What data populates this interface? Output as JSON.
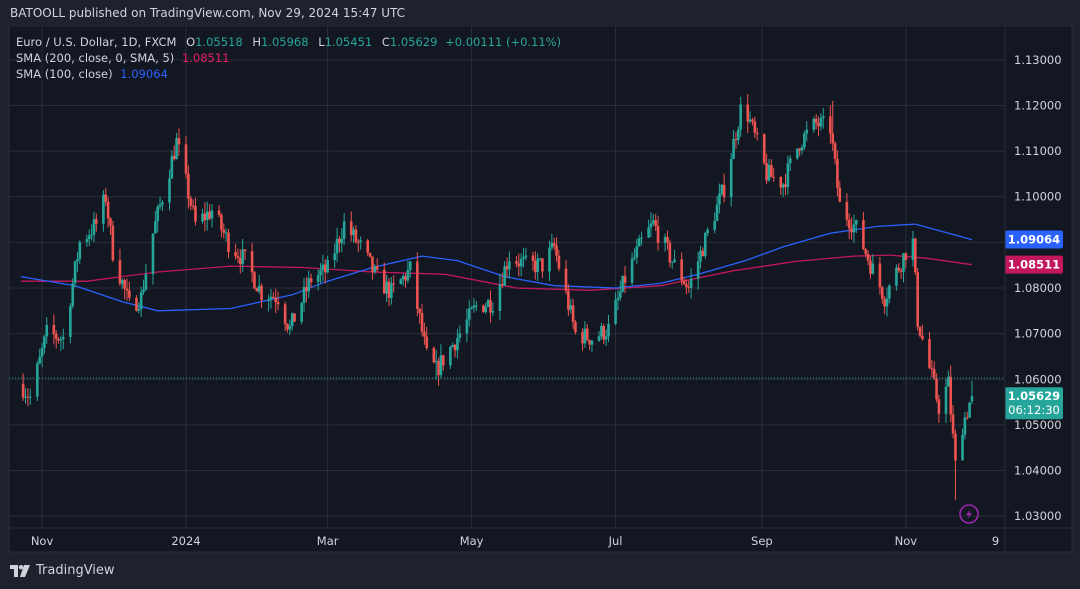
{
  "header": {
    "text": "BATOOLL published on TradingView.com, Nov 29, 2024 15:47 UTC"
  },
  "legend": {
    "symbol": "Euro / U.S. Dollar, 1D, FXCM",
    "o_key": "O",
    "o_val": "1.05518",
    "h_key": "H",
    "h_val": "1.05968",
    "l_key": "L",
    "l_val": "1.05451",
    "c_key": "C",
    "c_val": "1.05629",
    "change": "+0.00111 (+0.11%)",
    "sma200_label": "SMA (200, close, 0, SMA, 5)",
    "sma200_val": "1.08511",
    "sma100_label": "SMA (100, close)",
    "sma100_val": "1.09064"
  },
  "footer": {
    "brand": "TradingView"
  },
  "colors": {
    "bg": "#1e222d",
    "plot_bg": "#151924",
    "up": "#26a69a",
    "down": "#ef5350",
    "sma200": "#c2185b",
    "sma100": "#2962ff",
    "grid": "#2a2e39",
    "flash": "#9c27b0"
  },
  "chart_data": {
    "type": "candlestick",
    "title": "Euro / U.S. Dollar, 1D, FXCM",
    "ylim": [
      1.025,
      1.135
    ],
    "yticks": [
      "1.13000",
      "1.12000",
      "1.11000",
      "1.10000",
      "1.09000",
      "1.08000",
      "1.07000",
      "1.06000",
      "1.05000",
      "1.04000",
      "1.03000"
    ],
    "x_labels": [
      "Nov",
      "2024",
      "Mar",
      "May",
      "Jul",
      "Sep",
      "Nov",
      "9"
    ],
    "last_price": {
      "value": "1.05629",
      "countdown": "06:12:30"
    },
    "sma100_badge": "1.09064",
    "sma200_badge": "1.08511",
    "close_path": [
      [
        "2023-10-23",
        1.059
      ],
      [
        "2023-10-27",
        1.056
      ],
      [
        "2023-11-03",
        1.07
      ],
      [
        "2023-11-10",
        1.069
      ],
      [
        "2023-11-17",
        1.09
      ],
      [
        "2023-11-24",
        1.094
      ],
      [
        "2023-11-28",
        1.1
      ],
      [
        "2023-12-01",
        1.088
      ],
      [
        "2023-12-08",
        1.076
      ],
      [
        "2023-12-13",
        1.078
      ],
      [
        "2023-12-18",
        1.092
      ],
      [
        "2023-12-28",
        1.112
      ],
      [
        "2024-01-05",
        1.094
      ],
      [
        "2024-01-12",
        1.097
      ],
      [
        "2024-01-19",
        1.09
      ],
      [
        "2024-01-26",
        1.086
      ],
      [
        "2024-02-02",
        1.079
      ],
      [
        "2024-02-09",
        1.078
      ],
      [
        "2024-02-14",
        1.071
      ],
      [
        "2024-02-23",
        1.082
      ],
      [
        "2024-03-01",
        1.084
      ],
      [
        "2024-03-08",
        1.094
      ],
      [
        "2024-03-15",
        1.089
      ],
      [
        "2024-03-22",
        1.082
      ],
      [
        "2024-03-28",
        1.079
      ],
      [
        "2024-04-05",
        1.084
      ],
      [
        "2024-04-12",
        1.065
      ],
      [
        "2024-04-16",
        1.062
      ],
      [
        "2024-04-26",
        1.07
      ],
      [
        "2024-05-03",
        1.076
      ],
      [
        "2024-05-10",
        1.077
      ],
      [
        "2024-05-17",
        1.087
      ],
      [
        "2024-05-24",
        1.085
      ],
      [
        "2024-05-31",
        1.085
      ],
      [
        "2024-06-05",
        1.089
      ],
      [
        "2024-06-14",
        1.07
      ],
      [
        "2024-06-21",
        1.069
      ],
      [
        "2024-06-28",
        1.071
      ],
      [
        "2024-07-05",
        1.082
      ],
      [
        "2024-07-12",
        1.09
      ],
      [
        "2024-07-17",
        1.094
      ],
      [
        "2024-07-26",
        1.085
      ],
      [
        "2024-08-01",
        1.08
      ],
      [
        "2024-08-09",
        1.092
      ],
      [
        "2024-08-16",
        1.102
      ],
      [
        "2024-08-23",
        1.119
      ],
      [
        "2024-08-26",
        1.118
      ],
      [
        "2024-09-03",
        1.105
      ],
      [
        "2024-09-10",
        1.103
      ],
      [
        "2024-09-17",
        1.112
      ],
      [
        "2024-09-24",
        1.116
      ],
      [
        "2024-09-30",
        1.115
      ],
      [
        "2024-10-04",
        1.098
      ],
      [
        "2024-10-11",
        1.093
      ],
      [
        "2024-10-18",
        1.084
      ],
      [
        "2024-10-23",
        1.078
      ],
      [
        "2024-11-01",
        1.088
      ],
      [
        "2024-11-04",
        1.09
      ],
      [
        "2024-11-06",
        1.073
      ],
      [
        "2024-11-15",
        1.054
      ],
      [
        "2024-11-19",
        1.059
      ],
      [
        "2024-11-22",
        1.041
      ],
      [
        "2024-11-25",
        1.05
      ],
      [
        "2024-11-29",
        1.0563
      ]
    ],
    "sma100_path": [
      [
        "2023-10-23",
        1.0825
      ],
      [
        "2023-11-15",
        1.0805
      ],
      [
        "2023-12-05",
        1.077
      ],
      [
        "2023-12-20",
        1.075
      ],
      [
        "2024-01-20",
        1.0755
      ],
      [
        "2024-02-15",
        1.0785
      ],
      [
        "2024-03-01",
        1.0815
      ],
      [
        "2024-03-20",
        1.0845
      ],
      [
        "2024-04-10",
        1.087
      ],
      [
        "2024-04-25",
        1.086
      ],
      [
        "2024-05-15",
        1.0825
      ],
      [
        "2024-06-05",
        1.0805
      ],
      [
        "2024-07-01",
        1.08
      ],
      [
        "2024-07-20",
        1.081
      ],
      [
        "2024-08-05",
        1.083
      ],
      [
        "2024-08-25",
        1.086
      ],
      [
        "2024-09-10",
        1.089
      ],
      [
        "2024-09-30",
        1.092
      ],
      [
        "2024-10-20",
        1.0935
      ],
      [
        "2024-11-05",
        1.094
      ],
      [
        "2024-11-29",
        1.0906
      ]
    ],
    "sma200_path": [
      [
        "2023-10-23",
        1.0815
      ],
      [
        "2023-11-20",
        1.0815
      ],
      [
        "2023-12-20",
        1.0835
      ],
      [
        "2024-01-20",
        1.0848
      ],
      [
        "2024-02-20",
        1.0845
      ],
      [
        "2024-03-20",
        1.0835
      ],
      [
        "2024-04-20",
        1.083
      ],
      [
        "2024-05-20",
        1.08
      ],
      [
        "2024-06-20",
        1.0795
      ],
      [
        "2024-07-20",
        1.0805
      ],
      [
        "2024-08-20",
        1.0838
      ],
      [
        "2024-09-15",
        1.0858
      ],
      [
        "2024-10-10",
        1.087
      ],
      [
        "2024-10-25",
        1.0872
      ],
      [
        "2024-11-10",
        1.0865
      ],
      [
        "2024-11-29",
        1.0851
      ]
    ],
    "wick_extremes": [
      [
        "2024-11-22",
        1.0335
      ],
      [
        "2024-10-01",
        1.121
      ],
      [
        "2023-12-28",
        1.114
      ],
      [
        "2024-04-16",
        1.06
      ]
    ]
  }
}
